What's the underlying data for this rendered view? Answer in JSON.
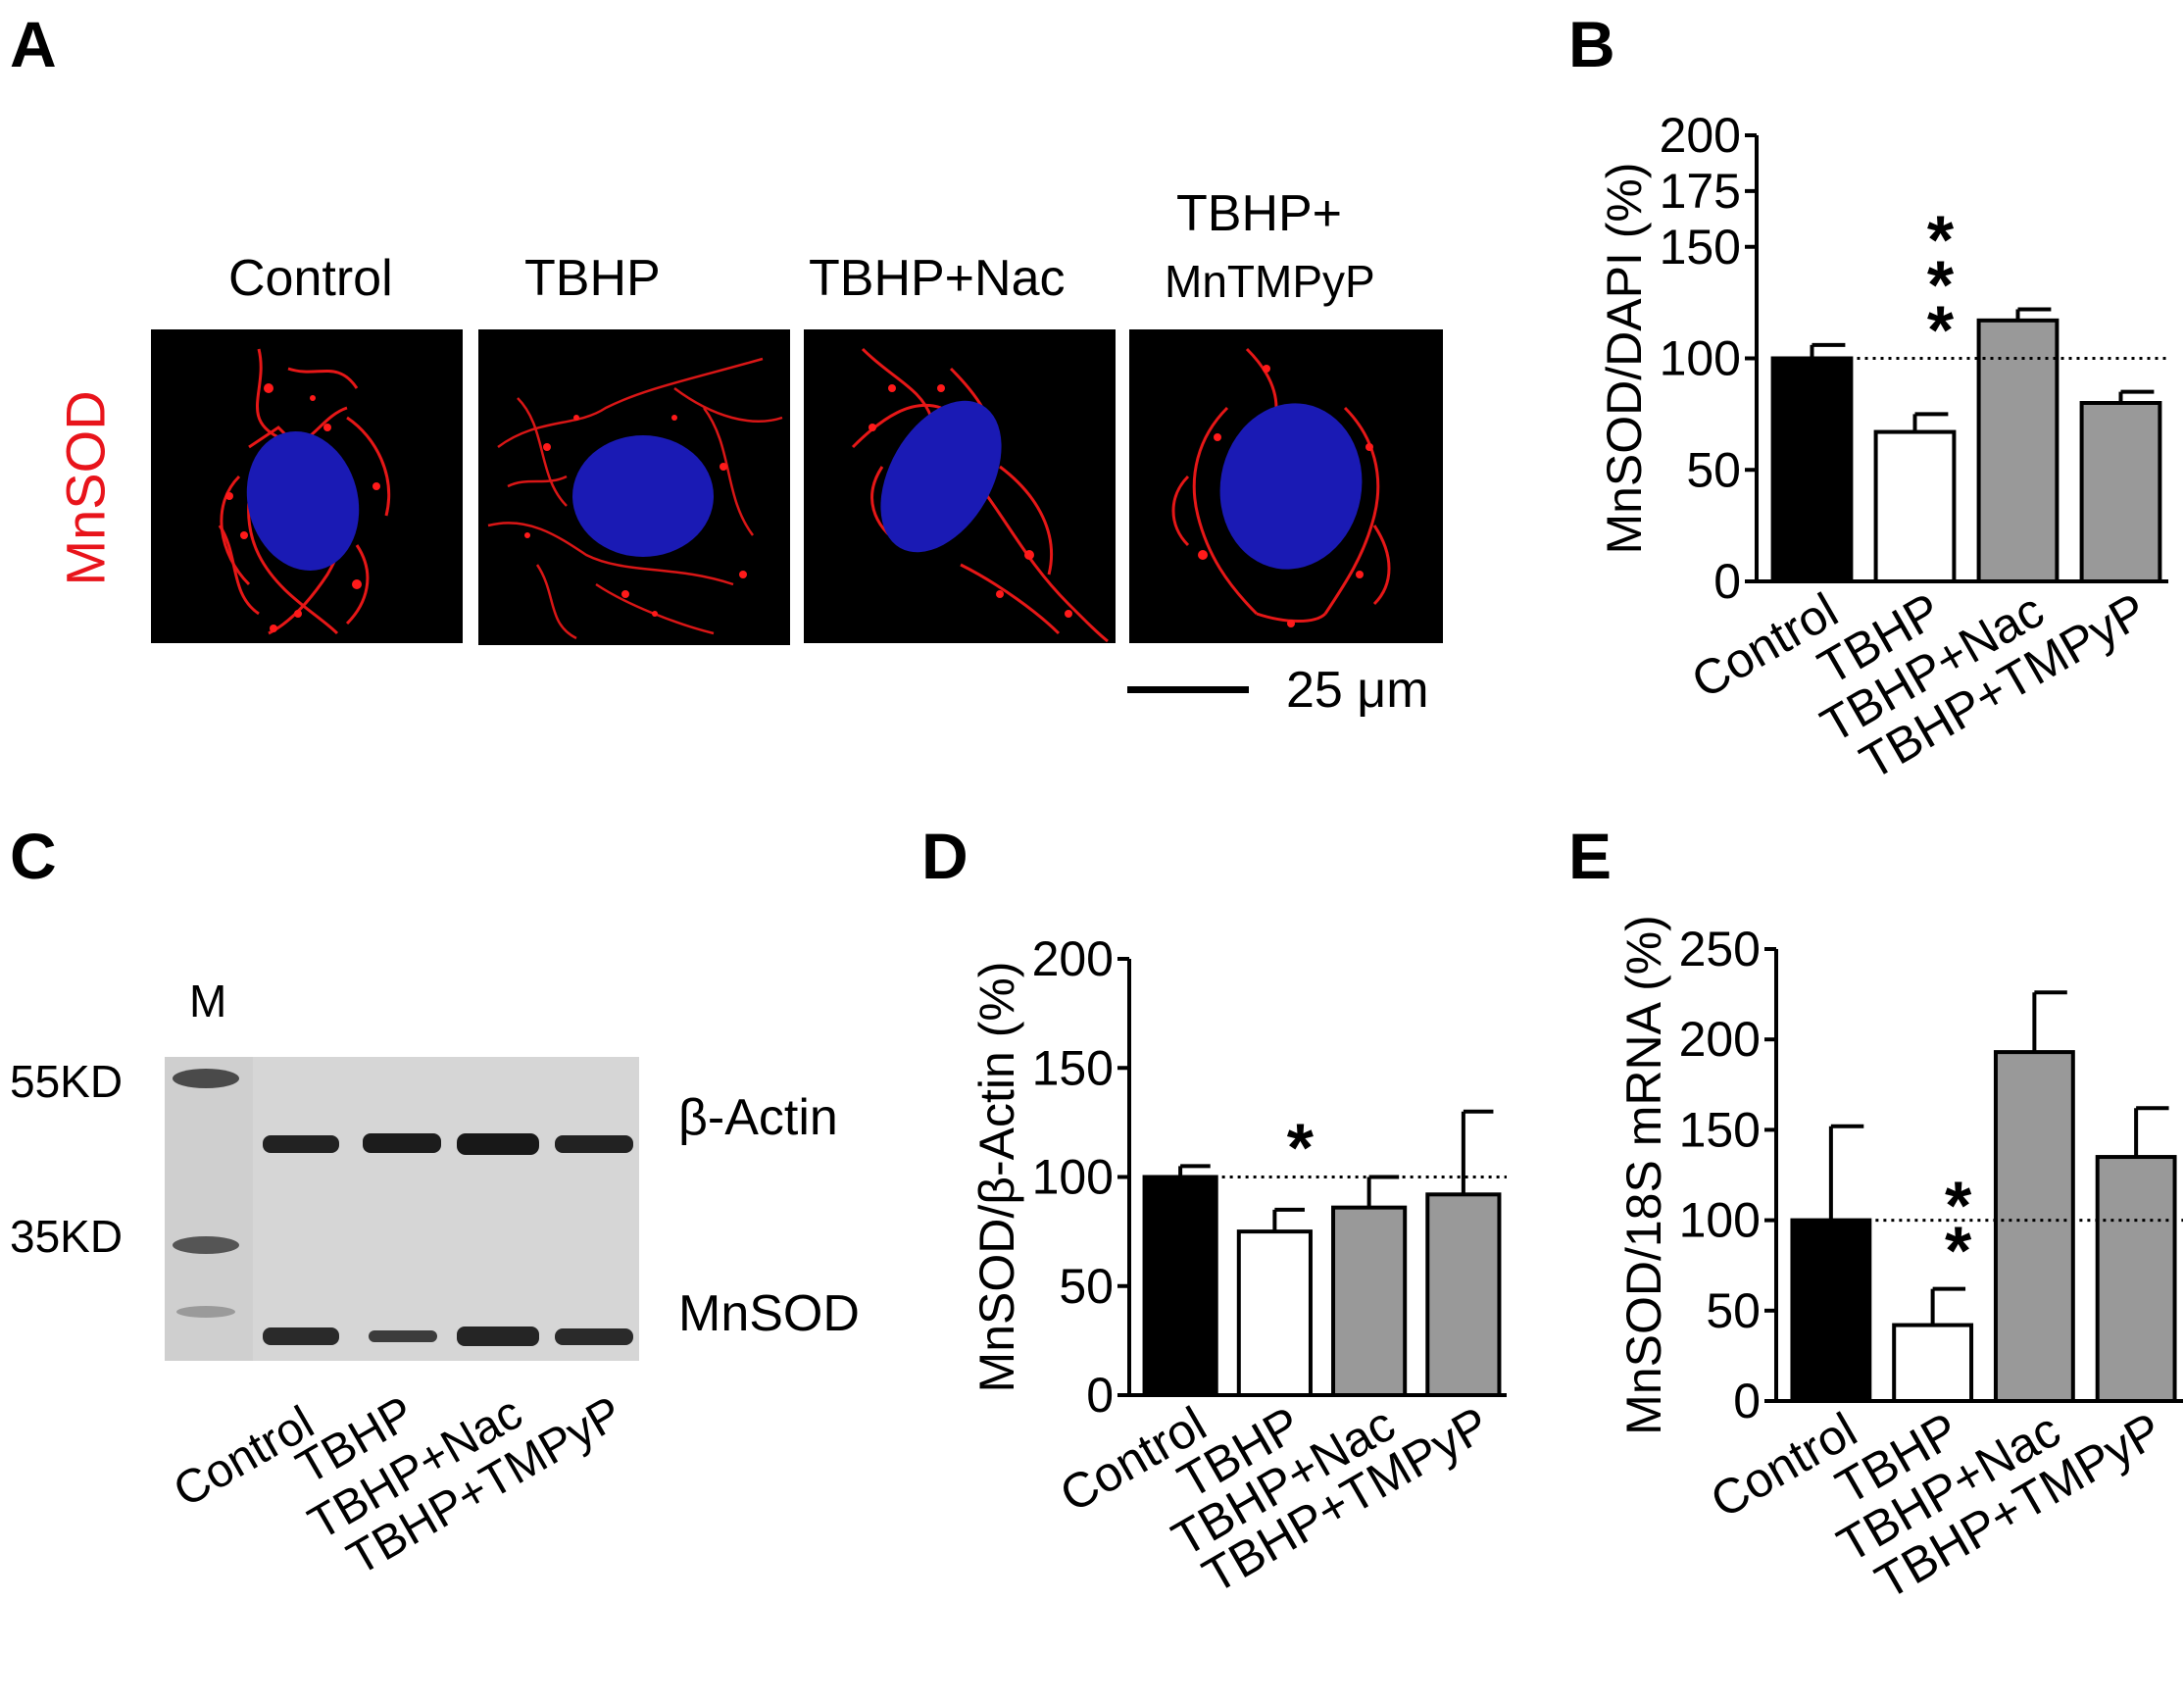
{
  "panel_letters": {
    "a": "A",
    "b": "B",
    "c": "C",
    "d": "D",
    "e": "E"
  },
  "panel_a": {
    "conditions": [
      "Control",
      "TBHP",
      "TBHP+Nac"
    ],
    "last_condition_line1": "TBHP+",
    "last_condition_line2": "MnTMPyP",
    "row_label": "MnSOD",
    "scale_bar_label": "25 μm",
    "colors": {
      "stain": "#ff1a1a",
      "nucleus": "#1a1ab4",
      "row_label": "#e8141b"
    }
  },
  "panel_c": {
    "marker_label": "M",
    "markers": [
      "55KD",
      "35KD"
    ],
    "bands": [
      "β-Actin",
      "MnSOD"
    ],
    "lanes": [
      "Control",
      "TBHP",
      "TBHP+Nac",
      "TBHP+TMPyP"
    ]
  },
  "chart_data": [
    {
      "panel": "B",
      "type": "bar",
      "categories": [
        "Control",
        "TBHP",
        "TBHP+Nac",
        "TBHP+TMPyP"
      ],
      "values": [
        100,
        67,
        117,
        80
      ],
      "errors": [
        6,
        8,
        5,
        5
      ],
      "colors": [
        "#000000",
        "#ffffff",
        "#999999",
        "#999999"
      ],
      "ylabel": "MnSOD/DAPI (%)",
      "ylim": [
        0,
        200
      ],
      "yticks": [
        "0",
        "50",
        "100",
        "150",
        "175",
        "200"
      ],
      "ytick_values": [
        0,
        50,
        100,
        150,
        175,
        200
      ],
      "reference_line": 100,
      "significance": {
        "category": "TBHP",
        "label": "***"
      },
      "grid": false
    },
    {
      "panel": "D",
      "type": "bar",
      "categories": [
        "Control",
        "TBHP",
        "TBHP+Nac",
        "TBHP+TMPyP"
      ],
      "values": [
        100,
        75,
        86,
        92
      ],
      "errors": [
        5,
        10,
        14,
        38
      ],
      "colors": [
        "#000000",
        "#ffffff",
        "#999999",
        "#999999"
      ],
      "ylabel": "MnSOD/β-Actin (%)",
      "ylim": [
        0,
        200
      ],
      "yticks": [
        "0",
        "50",
        "100",
        "150",
        "200"
      ],
      "ytick_values": [
        0,
        50,
        100,
        150,
        200
      ],
      "reference_line": 100,
      "significance": {
        "category": "TBHP",
        "label": "*"
      },
      "grid": false
    },
    {
      "panel": "E",
      "type": "bar",
      "categories": [
        "Control",
        "TBHP",
        "TBHP+Nac",
        "TBHP+TMPyP"
      ],
      "values": [
        100,
        42,
        193,
        135
      ],
      "errors": [
        52,
        20,
        33,
        27
      ],
      "colors": [
        "#000000",
        "#ffffff",
        "#999999",
        "#999999"
      ],
      "ylabel": "MnSOD/18S mRNA (%)",
      "ylim": [
        0,
        250
      ],
      "yticks": [
        "0",
        "50",
        "100",
        "150",
        "200",
        "250"
      ],
      "ytick_values": [
        0,
        50,
        100,
        150,
        200,
        250
      ],
      "reference_line": 100,
      "significance": {
        "category": "TBHP",
        "label": "**"
      },
      "grid": false
    }
  ]
}
